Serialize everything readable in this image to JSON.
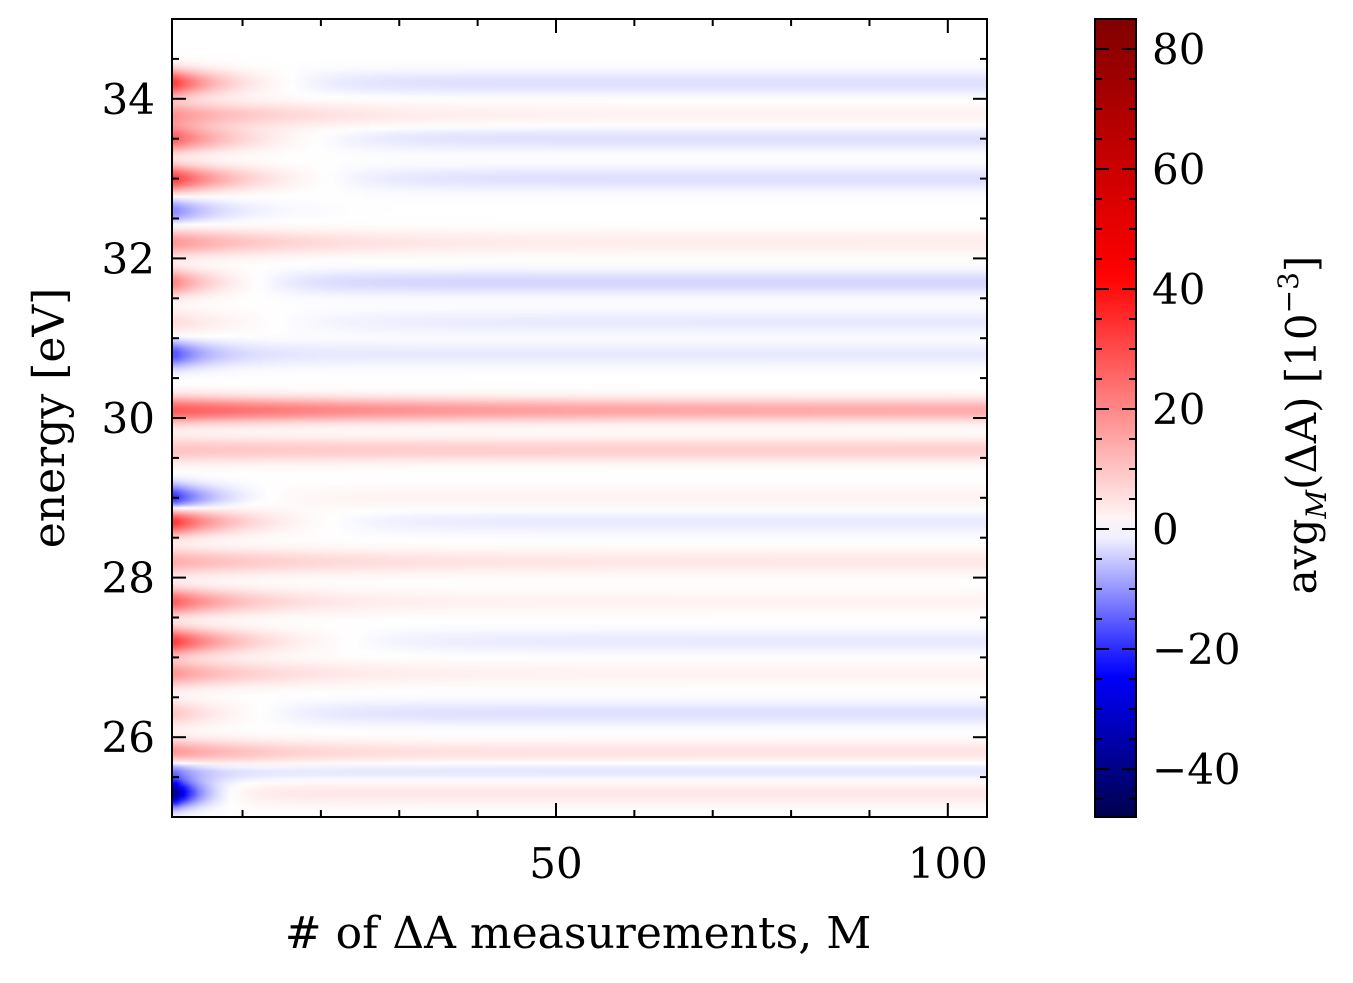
{
  "chart_data": {
    "type": "heatmap",
    "title": "",
    "xlabel": "# of ΔA measurements, M",
    "ylabel": "energy [eV]",
    "xlim": [
      1,
      105
    ],
    "ylim": [
      25,
      35
    ],
    "x_ticks": [
      {
        "value": 50,
        "label": "50"
      },
      {
        "value": 100,
        "label": "100"
      }
    ],
    "y_ticks": [
      {
        "value": 26,
        "label": "26"
      },
      {
        "value": 28,
        "label": "28"
      },
      {
        "value": 30,
        "label": "30"
      },
      {
        "value": 32,
        "label": "32"
      },
      {
        "value": 34,
        "label": "34"
      }
    ],
    "colorbar": {
      "label": "avg",
      "label_subscript": "M",
      "label_expr": "(ΔA) [10",
      "label_exponent": "−3",
      "label_close": "]",
      "vmin": -48,
      "vmax": 85,
      "ticks": [
        {
          "value": 80,
          "label": "80"
        },
        {
          "value": 60,
          "label": "60"
        },
        {
          "value": 40,
          "label": "40"
        },
        {
          "value": 20,
          "label": "20"
        },
        {
          "value": 0,
          "label": "0"
        },
        {
          "value": -20,
          "label": "−20"
        },
        {
          "value": -40,
          "label": "−40"
        }
      ],
      "colormap": "seismic",
      "colors": [
        "#00004c",
        "#0000ff",
        "#ffffff",
        "#ff0000",
        "#800000"
      ]
    },
    "bands": [
      {
        "e": 34.2,
        "amp": 35,
        "decay": 6,
        "final": -3
      },
      {
        "e": 33.8,
        "amp": 18,
        "decay": 12,
        "final": 2
      },
      {
        "e": 33.5,
        "amp": 28,
        "decay": 8,
        "final": -3
      },
      {
        "e": 33.0,
        "amp": 34,
        "decay": 8,
        "final": -3
      },
      {
        "e": 32.6,
        "amp": -12,
        "decay": 5,
        "final": 0
      },
      {
        "e": 32.2,
        "amp": 18,
        "decay": 12,
        "final": 3
      },
      {
        "e": 31.7,
        "amp": 22,
        "decay": 6,
        "final": -4
      },
      {
        "e": 31.2,
        "amp": 6,
        "decay": 10,
        "final": -2
      },
      {
        "e": 30.8,
        "amp": -18,
        "decay": 4,
        "final": -2
      },
      {
        "e": 30.1,
        "amp": 28,
        "decay": 25,
        "final": 14
      },
      {
        "e": 29.6,
        "amp": 10,
        "decay": 20,
        "final": 8
      },
      {
        "e": 29.0,
        "amp": -22,
        "decay": 5,
        "final": 2
      },
      {
        "e": 28.7,
        "amp": 36,
        "decay": 7,
        "final": -2
      },
      {
        "e": 28.2,
        "amp": 14,
        "decay": 14,
        "final": 4
      },
      {
        "e": 27.7,
        "amp": 28,
        "decay": 8,
        "final": 2
      },
      {
        "e": 27.2,
        "amp": 34,
        "decay": 8,
        "final": -2
      },
      {
        "e": 26.8,
        "amp": 18,
        "decay": 10,
        "final": 2
      },
      {
        "e": 26.3,
        "amp": 10,
        "decay": 8,
        "final": -3
      },
      {
        "e": 25.8,
        "amp": 20,
        "decay": 10,
        "final": 5
      },
      {
        "e": 25.6,
        "amp": -15,
        "decay": 4,
        "final": -3
      },
      {
        "e": 25.3,
        "amp": -45,
        "decay": 3,
        "final": 4
      }
    ]
  }
}
